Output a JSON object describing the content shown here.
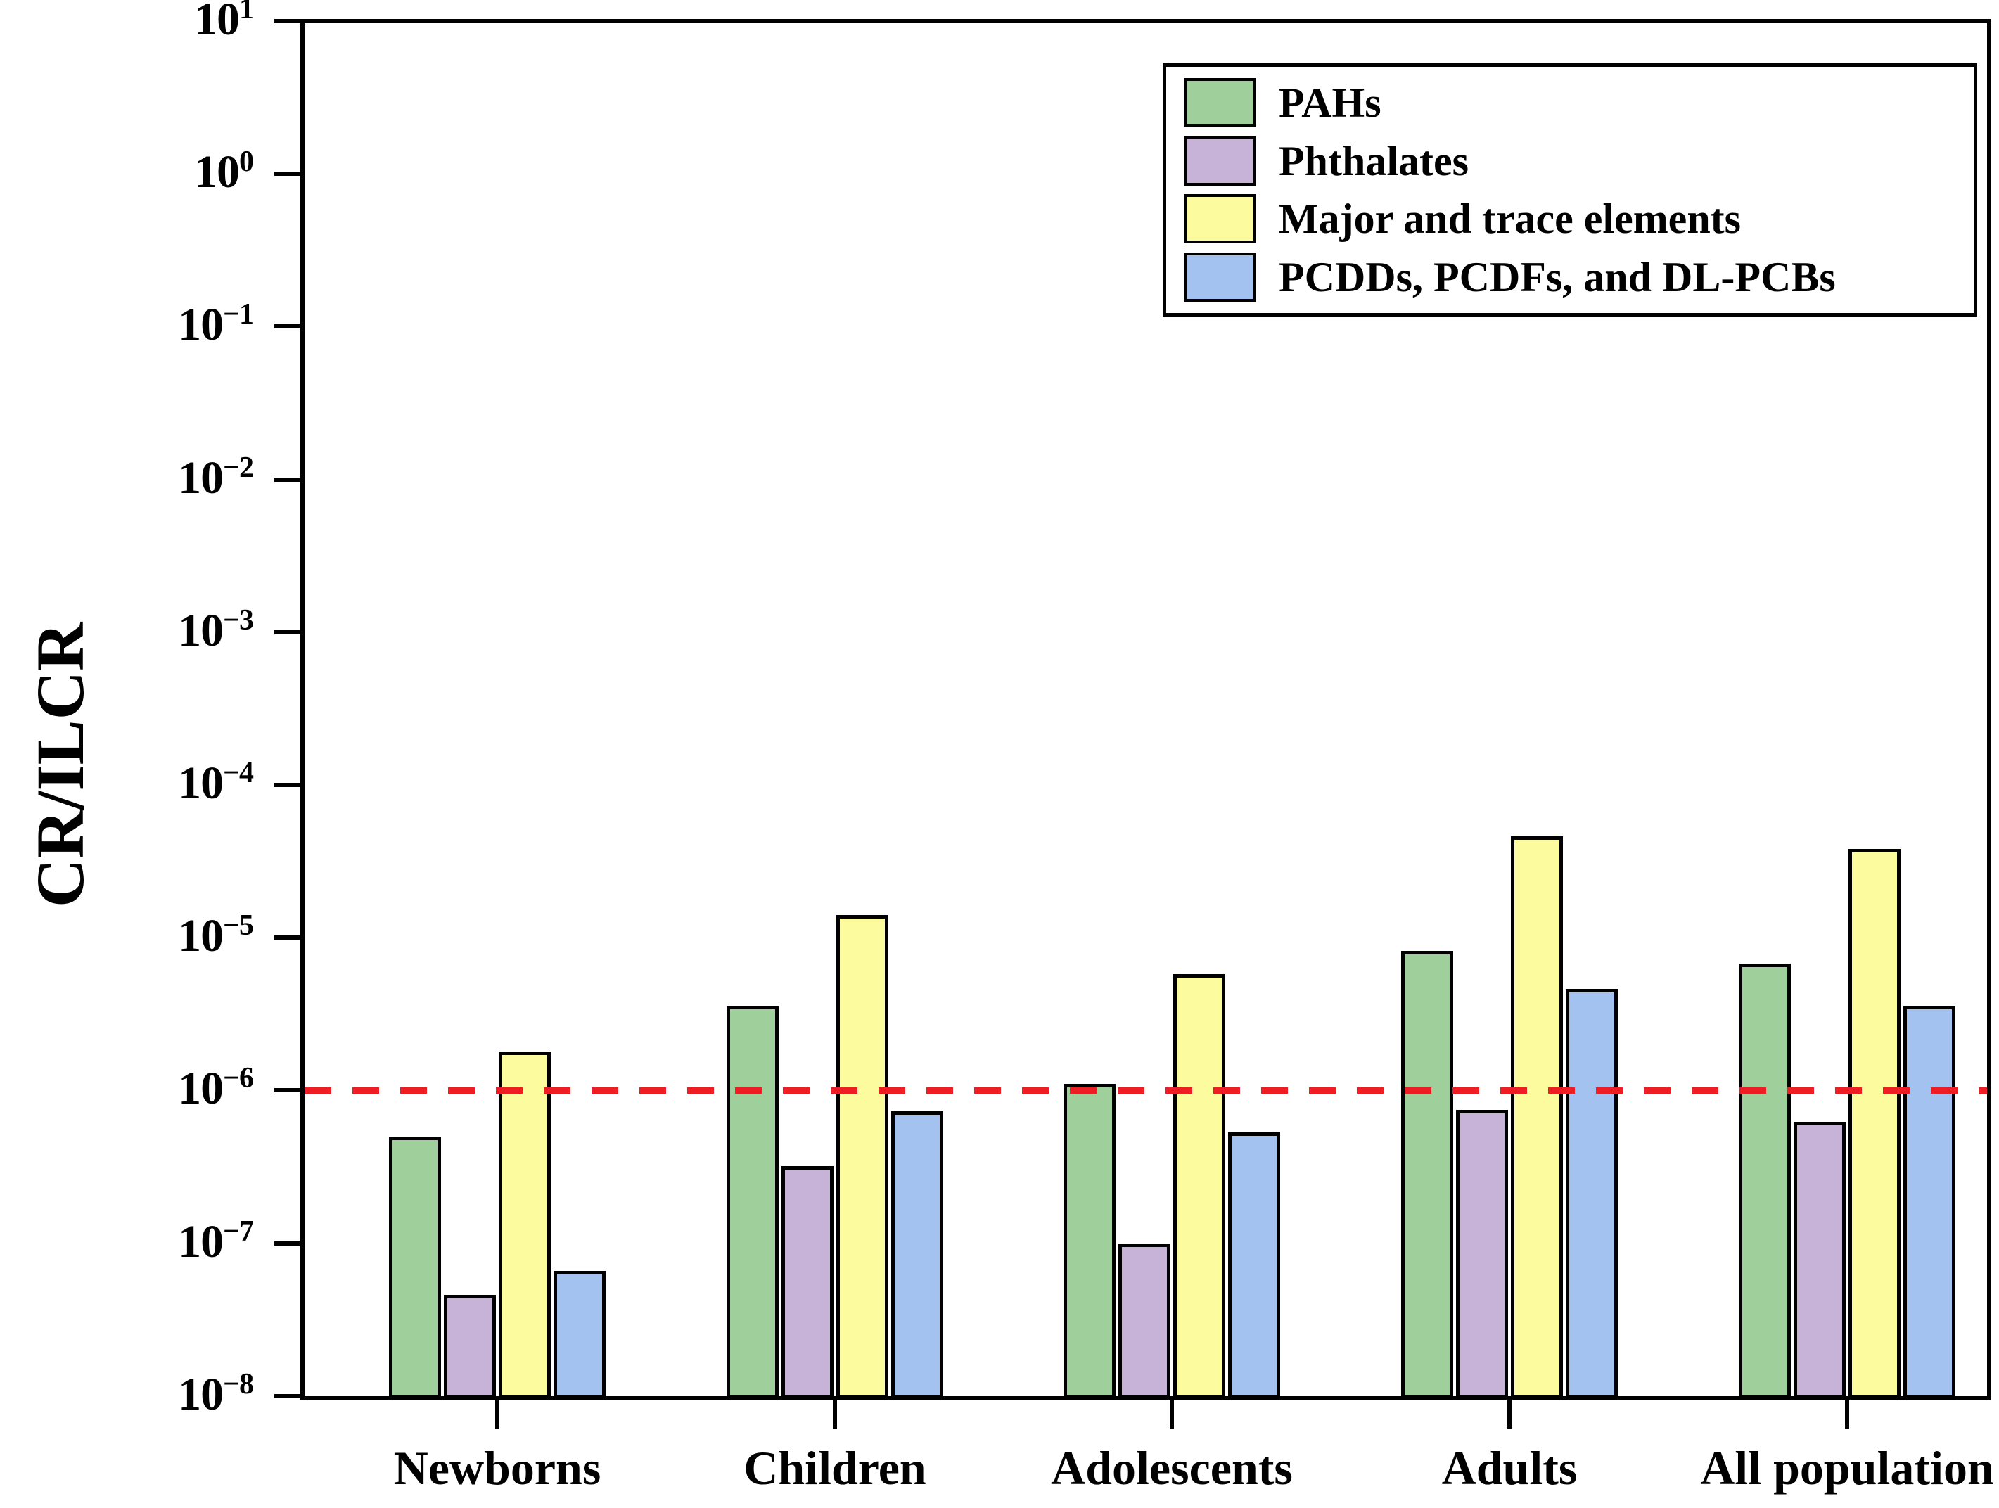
{
  "chart_data": {
    "type": "bar",
    "yscale": "log",
    "title": "",
    "xlabel": "",
    "ylabel": "CR/ILCR",
    "categories": [
      "Newborns",
      "Children",
      "Adolescents",
      "Adults",
      "All population"
    ],
    "series": [
      {
        "name": "PAHs",
        "color": "#9fd09c",
        "values": [
          5e-07,
          3.6e-06,
          1.1e-06,
          8.2e-06,
          6.8e-06
        ]
      },
      {
        "name": "Phthalates",
        "color": "#c7b2d8",
        "values": [
          4.6e-08,
          3.2e-07,
          1e-07,
          7.5e-07,
          6.2e-07
        ]
      },
      {
        "name": "Major and trace elements",
        "color": "#fcfc9f",
        "values": [
          1.8e-06,
          1.4e-05,
          5.8e-06,
          4.6e-05,
          3.8e-05
        ]
      },
      {
        "name": "PCDDs, PCDFs, and DL-PCBs",
        "color": "#a4c2f0",
        "values": [
          6.6e-08,
          7.3e-07,
          5.3e-07,
          4.6e-06,
          3.6e-06
        ]
      }
    ],
    "ylim": [
      1e-08,
      10.0
    ],
    "ytick_exponents": [
      1,
      0,
      -1,
      -2,
      -3,
      -4,
      -5,
      -6,
      -7,
      -8
    ],
    "threshold_line": {
      "value": 1e-06,
      "color": "#ee1d23",
      "style": "dashed"
    },
    "legend_position": "top-right-inside",
    "grid": false,
    "bar_edge_color": "#000000",
    "axis_color": "#000000"
  }
}
